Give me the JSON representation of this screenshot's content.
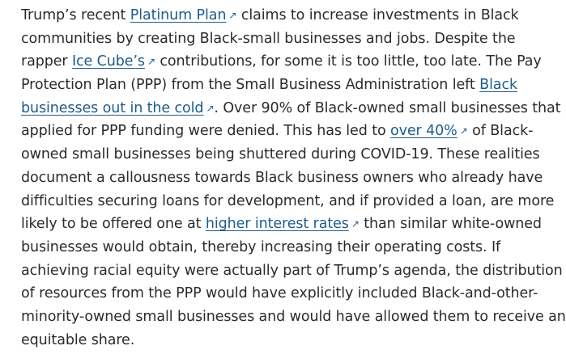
{
  "paragraph": {
    "lines": [
      {
        "segments": [
          {
            "text": "Trump’s recent "
          },
          {
            "link": "Platinum Plan",
            "icon": "external-link-arrow-icon"
          },
          {
            "text": " claims to increase investments in Black"
          }
        ]
      },
      {
        "segments": [
          {
            "text": "communities by creating Black-small businesses and jobs. Despite the"
          }
        ]
      },
      {
        "segments": [
          {
            "text": "rapper "
          },
          {
            "link": "Ice Cube’s",
            "icon": "external-link-arrow-icon"
          },
          {
            "text": " contributions, for some it is too little, too late. The Pay"
          }
        ]
      },
      {
        "segments": [
          {
            "text": "Protection Plan (PPP) from the Small Business Administration left "
          },
          {
            "link": "Black",
            "icon": null
          }
        ]
      },
      {
        "segments": [
          {
            "link": "businesses out in the cold",
            "icon": "external-link-arrow-icon"
          },
          {
            "text": ". Over 90% of Black-owned small businesses that"
          }
        ]
      },
      {
        "segments": [
          {
            "text": "applied for PPP funding were denied. This has led to "
          },
          {
            "link": "over 40%",
            "icon": "external-link-arrow-icon"
          },
          {
            "text": " of Black-"
          }
        ]
      },
      {
        "segments": [
          {
            "text": "owned small businesses being shuttered during COVID-19. These realities"
          }
        ]
      },
      {
        "segments": [
          {
            "text": "document a callousness towards Black business owners who already have"
          }
        ]
      },
      {
        "segments": [
          {
            "text": "difficulties securing loans for development, and if provided a loan, are more"
          }
        ]
      },
      {
        "segments": [
          {
            "text": "likely to be offered one at "
          },
          {
            "link": "higher interest rates",
            "icon": "external-link-arrow-icon"
          },
          {
            "text": " than similar white-owned"
          }
        ]
      },
      {
        "segments": [
          {
            "text": "businesses would obtain, thereby increasing their operating costs. If"
          }
        ]
      },
      {
        "segments": [
          {
            "text": "achieving racial equity were actually part of Trump’s agenda, the distribution"
          }
        ]
      },
      {
        "segments": [
          {
            "text": "of resources from the PPP would have explicitly included Black-and-other-"
          }
        ]
      },
      {
        "segments": [
          {
            "text": "minority-owned small businesses and would have allowed them to receive an"
          }
        ]
      },
      {
        "segments": [
          {
            "text": "equitable share."
          }
        ]
      }
    ]
  },
  "icons": {
    "external-link-arrow-icon": "↗"
  },
  "colors": {
    "text": "#2b2b2b",
    "link": "#1f5b8a"
  }
}
